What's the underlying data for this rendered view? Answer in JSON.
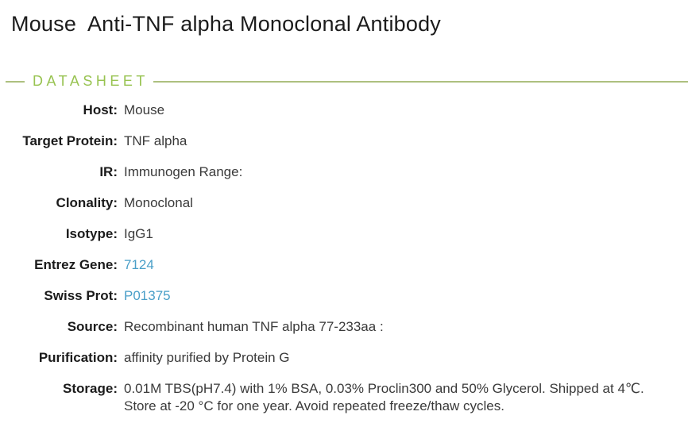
{
  "page": {
    "title": "Mouse  Anti-TNF alpha Monoclonal Antibody"
  },
  "section": {
    "heading": "DATASHEET"
  },
  "colors": {
    "heading_green": "#98c351",
    "rule_green": "#adc07f",
    "link_blue": "#4a9fc8",
    "label_text": "#1b1b1b",
    "value_text": "#3a3a3a"
  },
  "datasheet": {
    "rows": [
      {
        "label": "Host:",
        "value": "Mouse"
      },
      {
        "label": "Target Protein:",
        "value": "TNF alpha"
      },
      {
        "label": "IR:",
        "value": "Immunogen Range:"
      },
      {
        "label": "Clonality:",
        "value": "Monoclonal"
      },
      {
        "label": "Isotype:",
        "value": "IgG1"
      },
      {
        "label": "Entrez Gene:",
        "value": "7124"
      },
      {
        "label": "Swiss Prot:",
        "value": "P01375"
      },
      {
        "label": "Source:",
        "value": "Recombinant human TNF alpha 77-233aa :"
      },
      {
        "label": "Purification:",
        "value": "affinity purified by Protein G"
      },
      {
        "label": "Storage:",
        "value_lines": [
          "0.01M TBS(pH7.4) with 1% BSA, 0.03% Proclin300 and 50% Glycerol. Shipped at 4℃.",
          "Store at -20 °C for one year. Avoid repeated freeze/thaw cycles."
        ]
      }
    ]
  }
}
